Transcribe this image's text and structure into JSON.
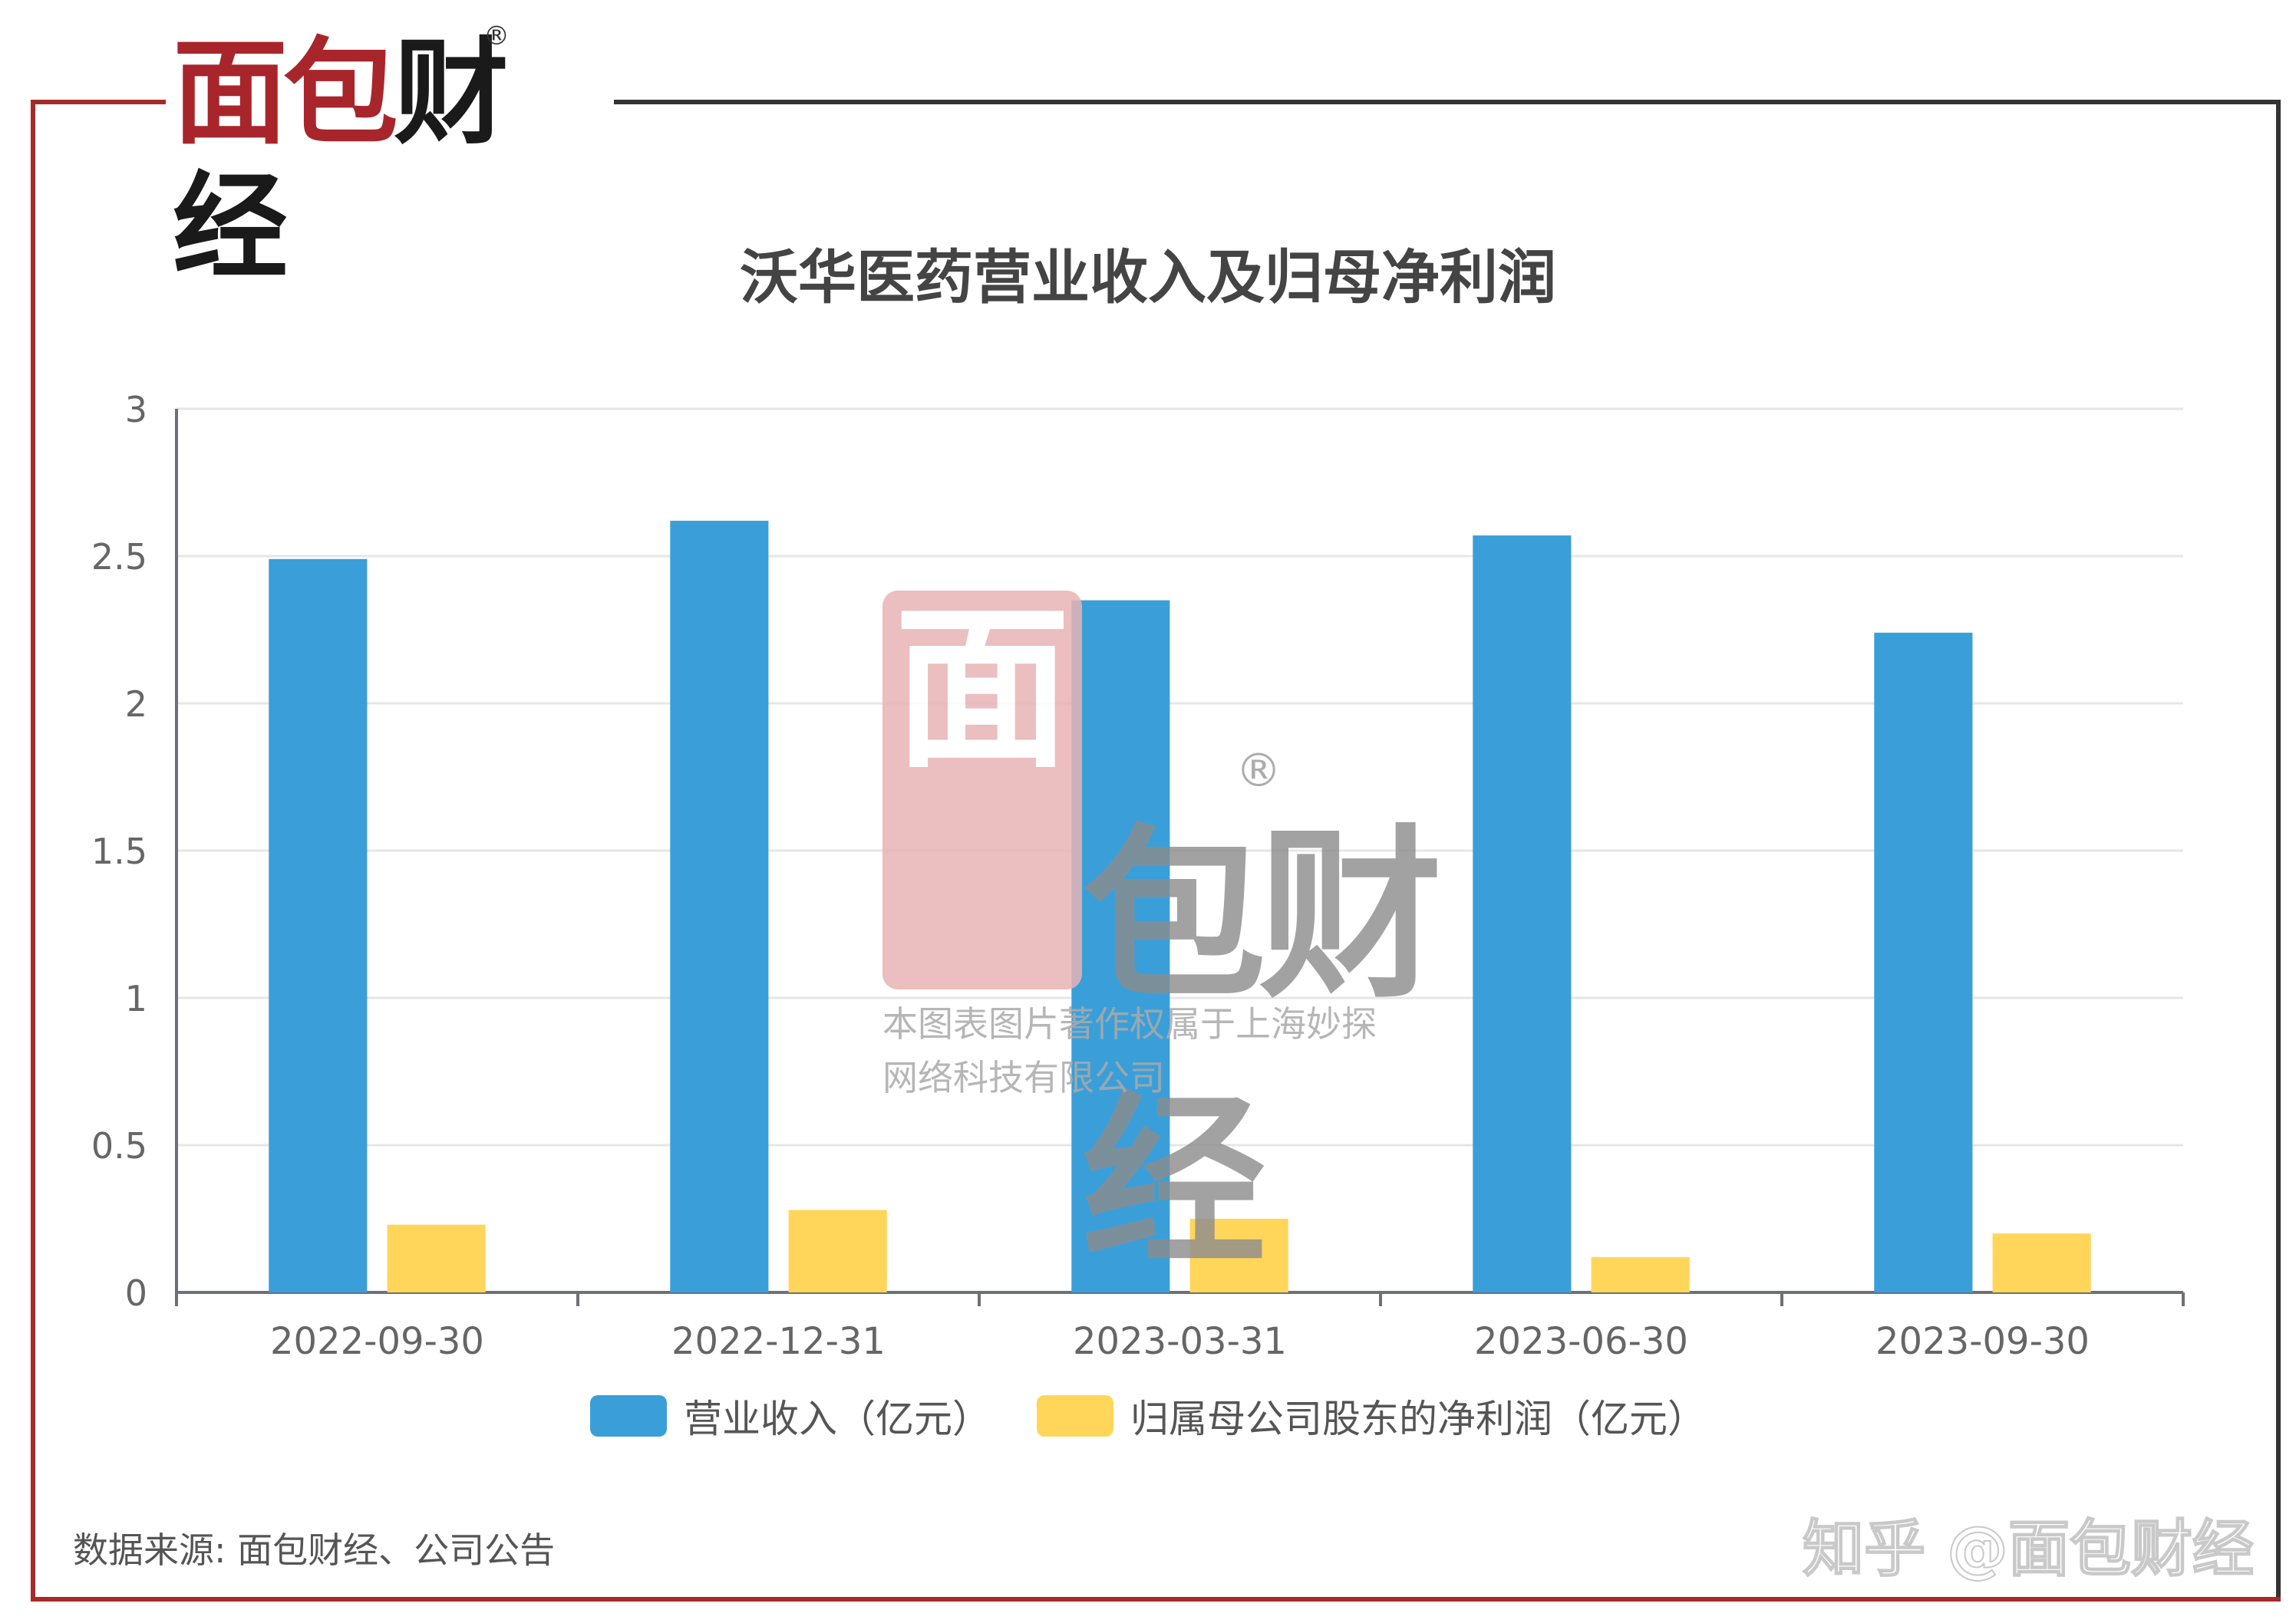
{
  "logo": {
    "brand_red": "面包",
    "brand_dark": "财经",
    "registered": "®"
  },
  "watermark": {
    "char1": "面",
    "brand": "包财经",
    "registered": "®",
    "line1": "本图表图片著作权属于上海妙探",
    "line2": "网络科技有限公司"
  },
  "footer": {
    "source": "数据来源: 面包财经、公司公告",
    "zhihu": "知乎 @面包财经"
  },
  "colors": {
    "revenue": "#3a9fd9",
    "profit": "#ffd65a",
    "axis": "#666666",
    "grid": "#e6e6e6",
    "brand_red": "#a8262b"
  },
  "chart_data": {
    "type": "bar",
    "title": "沃华医药营业收入及归母净利润",
    "categories": [
      "2022-09-30",
      "2022-12-31",
      "2023-03-31",
      "2023-06-30",
      "2023-09-30"
    ],
    "series": [
      {
        "name": "营业收入（亿元）",
        "values": [
          2.49,
          2.62,
          2.35,
          2.57,
          2.24
        ]
      },
      {
        "name": "归属母公司股东的净利润（亿元）",
        "values": [
          0.23,
          0.28,
          0.25,
          0.12,
          0.2
        ]
      }
    ],
    "yticks": [
      "0",
      "0.5",
      "1",
      "1.5",
      "2",
      "2.5",
      "3"
    ],
    "ylim": [
      0,
      3
    ],
    "grid": true,
    "legend": "bottom"
  }
}
